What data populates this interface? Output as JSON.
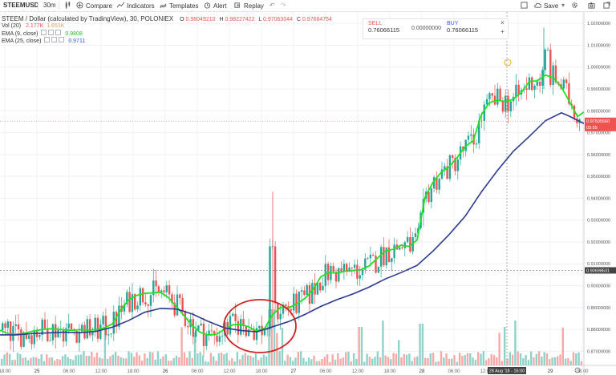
{
  "toolbar": {
    "symbol": "STEEMUSD",
    "interval": "30m",
    "compare": "Compare",
    "indicators": "Indicators",
    "templates": "Templates",
    "alert": "Alert",
    "replay": "Replay",
    "save": "Save"
  },
  "legend": {
    "title": "STEEM / Dollar (calculated by TradingView), 30, POLONIEX",
    "ohlc": {
      "o_label": "O",
      "o": "0.98049210",
      "h_label": "H",
      "h": "0.98227422",
      "l_label": "L",
      "l": "0.97063044",
      "c_label": "C",
      "c": "0.97684754"
    },
    "vol_label": "Vol (20)",
    "vol1": "2.177K",
    "vol2": "1.651K",
    "ema9_label": "EMA (9, close)",
    "ema9": "0.9808",
    "ema25_label": "EMA (25, close)",
    "ema25": "0.9711"
  },
  "trade": {
    "sell_label": "SELL",
    "sell_price": "0.76066115",
    "mid": "0.00000000",
    "buy_label": "BUY",
    "buy_price": "0.76066115"
  },
  "colors": {
    "up": "#26a69a",
    "down": "#ef5350",
    "ema9": "#22e022",
    "ema25": "#2b3a8f",
    "vol_up": "#8fd2c8",
    "vol_down": "#f6a9a7",
    "circle": "#d32020"
  },
  "chart_data": {
    "type": "candlestick",
    "title": "STEEM / Dollar (calculated by TradingView), 30, POLONIEX",
    "y_axis": {
      "ticks": [
        "0.87000000",
        "0.88000000",
        "0.89000000",
        "0.90000000",
        "0.91000000",
        "0.92000000",
        "0.93000000",
        "0.94000000",
        "0.95000000",
        "0.96000000",
        "0.97000000",
        "0.98000000",
        "0.99000000",
        "1.00000000",
        "1.01000000",
        "1.02000000"
      ],
      "ylim": [
        0.865,
        1.023
      ]
    },
    "x_axis": {
      "ticks": [
        "18:00",
        "25",
        "06:00",
        "12:00",
        "18:00",
        "26",
        "06:00",
        "12:00",
        "18:00",
        "27",
        "06:00",
        "12:00",
        "18:00",
        "28",
        "06:00",
        "12:00",
        "18:00",
        "29",
        "06:00"
      ]
    },
    "crosshair_price": "0.90698631",
    "crosshair_time": "28 Aug '18 - 16:00",
    "last_price": "0.97505660",
    "countdown": "03:55",
    "series": [
      {
        "name": "EMA (9, close)",
        "points": [
          [
            0,
            0.8796
          ],
          [
            10,
            0.8781
          ],
          [
            20,
            0.8778
          ],
          [
            30,
            0.8782
          ],
          [
            40,
            0.8791
          ],
          [
            50,
            0.8798
          ],
          [
            60,
            0.8803
          ],
          [
            70,
            0.8802
          ],
          [
            80,
            0.8798
          ],
          [
            90,
            0.8796
          ],
          [
            100,
            0.8799
          ],
          [
            110,
            0.8797
          ],
          [
            120,
            0.8799
          ],
          [
            130,
            0.8807
          ],
          [
            140,
            0.8825
          ],
          [
            150,
            0.8885
          ],
          [
            160,
            0.8934
          ],
          [
            170,
            0.8955
          ],
          [
            180,
            0.8965
          ],
          [
            190,
            0.8967
          ],
          [
            200,
            0.897
          ],
          [
            210,
            0.8946
          ],
          [
            220,
            0.8904
          ],
          [
            230,
            0.886
          ],
          [
            240,
            0.8817
          ],
          [
            250,
            0.8786
          ],
          [
            260,
            0.8774
          ],
          [
            270,
            0.8778
          ],
          [
            280,
            0.8801
          ],
          [
            290,
            0.8821
          ],
          [
            300,
            0.8823
          ],
          [
            310,
            0.8812
          ],
          [
            320,
            0.8793
          ],
          [
            330,
            0.8805
          ],
          [
            340,
            0.8868
          ],
          [
            350,
            0.8901
          ],
          [
            360,
            0.8899
          ],
          [
            370,
            0.8917
          ],
          [
            380,
            0.8941
          ],
          [
            390,
            0.8981
          ],
          [
            400,
            0.9041
          ],
          [
            410,
            0.906
          ],
          [
            420,
            0.9057
          ],
          [
            430,
            0.9066
          ],
          [
            440,
            0.9069
          ],
          [
            450,
            0.9073
          ],
          [
            460,
            0.909
          ],
          [
            470,
            0.9124
          ],
          [
            480,
            0.9158
          ],
          [
            490,
            0.9166
          ],
          [
            500,
            0.9185
          ],
          [
            510,
            0.918
          ],
          [
            520,
            0.9209
          ],
          [
            530,
            0.9406
          ],
          [
            540,
            0.9474
          ],
          [
            550,
            0.9518
          ],
          [
            560,
            0.9544
          ],
          [
            570,
            0.9587
          ],
          [
            580,
            0.9636
          ],
          [
            590,
            0.9663
          ],
          [
            600,
            0.9781
          ],
          [
            610,
            0.9837
          ],
          [
            620,
            0.9849
          ],
          [
            630,
            0.9842
          ],
          [
            640,
            0.9853
          ],
          [
            650,
            0.9884
          ],
          [
            660,
            0.9934
          ],
          [
            670,
            0.9937
          ],
          [
            680,
            0.9964
          ],
          [
            690,
            0.9951
          ],
          [
            700,
            0.9908
          ],
          [
            710,
            0.9842
          ],
          [
            720,
            0.9774
          ],
          [
            728,
            0.9794
          ]
        ]
      },
      {
        "name": "EMA (25, close)",
        "points": [
          [
            0,
            0.8775
          ],
          [
            20,
            0.8775
          ],
          [
            40,
            0.8781
          ],
          [
            60,
            0.8784
          ],
          [
            80,
            0.8787
          ],
          [
            100,
            0.8785
          ],
          [
            120,
            0.8791
          ],
          [
            140,
            0.881
          ],
          [
            160,
            0.884
          ],
          [
            180,
            0.8878
          ],
          [
            200,
            0.8896
          ],
          [
            220,
            0.8893
          ],
          [
            240,
            0.887
          ],
          [
            260,
            0.8836
          ],
          [
            280,
            0.8807
          ],
          [
            300,
            0.8795
          ],
          [
            320,
            0.8789
          ],
          [
            340,
            0.8812
          ],
          [
            360,
            0.8836
          ],
          [
            380,
            0.8868
          ],
          [
            400,
            0.8905
          ],
          [
            420,
            0.8936
          ],
          [
            440,
            0.8962
          ],
          [
            460,
            0.8993
          ],
          [
            480,
            0.903
          ],
          [
            500,
            0.906
          ],
          [
            520,
            0.9093
          ],
          [
            540,
            0.9159
          ],
          [
            560,
            0.9234
          ],
          [
            580,
            0.9318
          ],
          [
            600,
            0.9428
          ],
          [
            620,
            0.9526
          ],
          [
            640,
            0.9615
          ],
          [
            660,
            0.9683
          ],
          [
            680,
            0.9755
          ],
          [
            700,
            0.9791
          ],
          [
            710,
            0.9775
          ],
          [
            728,
            0.9742
          ]
        ]
      }
    ]
  }
}
